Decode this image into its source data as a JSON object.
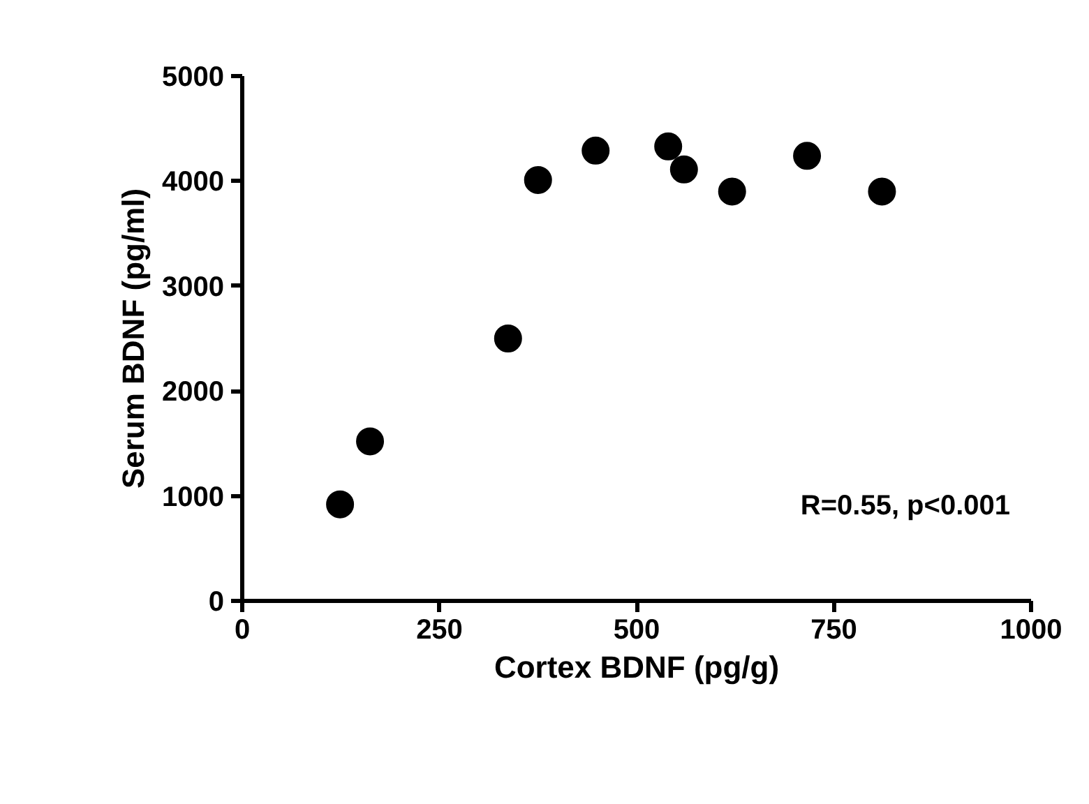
{
  "chart_data": {
    "type": "scatter",
    "xlabel": "Cortex BDNF (pg/g)",
    "ylabel": "Serum BDNF (pg/ml)",
    "x": [
      124,
      162,
      337,
      375,
      448,
      540,
      560,
      621,
      716,
      811
    ],
    "values": [
      920,
      1520,
      2500,
      4010,
      4290,
      4330,
      4110,
      3900,
      4240,
      3900
    ],
    "color": "#000000",
    "marker": "circle",
    "xlim": [
      0,
      1000
    ],
    "ylim": [
      0,
      5000
    ],
    "xticks": [
      0,
      250,
      500,
      750,
      1000
    ],
    "yticks": [
      0,
      1000,
      2000,
      3000,
      4000,
      5000
    ],
    "grid": false,
    "annotations": [
      "R=0.55, p<0.001"
    ]
  }
}
